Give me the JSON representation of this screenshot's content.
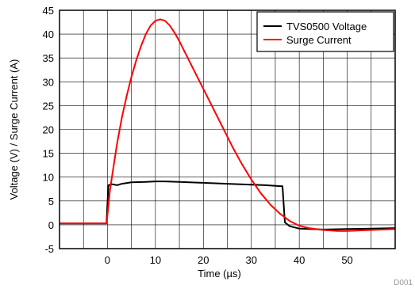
{
  "chart_data": {
    "type": "line",
    "title": "",
    "xlabel": "Time (µs)",
    "ylabel": "Voltage (V) / Surge Current (A)",
    "xlim": [
      -10,
      60
    ],
    "ylim": [
      -5,
      45
    ],
    "x_ticks": [
      0,
      10,
      20,
      30,
      40,
      50
    ],
    "y_ticks": [
      -5,
      0,
      5,
      10,
      15,
      20,
      25,
      30,
      35,
      40,
      45
    ],
    "grid": true,
    "legend_position": "top-right",
    "figure_id": "D001",
    "series": [
      {
        "name": "TVS0500 Voltage",
        "color": "#000000",
        "points": [
          [
            -10,
            0.3
          ],
          [
            -5,
            0.3
          ],
          [
            -0.2,
            0.3
          ],
          [
            0.2,
            8.3
          ],
          [
            1,
            8.5
          ],
          [
            2,
            8.3
          ],
          [
            3,
            8.6
          ],
          [
            5,
            8.9
          ],
          [
            8,
            9.0
          ],
          [
            10,
            9.1
          ],
          [
            12,
            9.1
          ],
          [
            15,
            9.0
          ],
          [
            20,
            8.8
          ],
          [
            25,
            8.6
          ],
          [
            30,
            8.4
          ],
          [
            33,
            8.3
          ],
          [
            36,
            8.1
          ],
          [
            36.5,
            8.1
          ],
          [
            37,
            0.5
          ],
          [
            38,
            -0.3
          ],
          [
            40,
            -0.8
          ],
          [
            45,
            -1.0
          ],
          [
            50,
            -0.9
          ],
          [
            55,
            -0.8
          ],
          [
            60,
            -0.7
          ]
        ]
      },
      {
        "name": "Surge Current",
        "color": "#ff0000",
        "points": [
          [
            -10,
            0.3
          ],
          [
            -5,
            0.3
          ],
          [
            -0.2,
            0.3
          ],
          [
            0,
            2.0
          ],
          [
            0.5,
            7.0
          ],
          [
            1,
            10.5
          ],
          [
            2,
            17.0
          ],
          [
            3,
            22.5
          ],
          [
            4,
            27.0
          ],
          [
            5,
            31.0
          ],
          [
            6,
            34.5
          ],
          [
            7,
            37.5
          ],
          [
            8,
            40.0
          ],
          [
            9,
            41.8
          ],
          [
            10,
            42.8
          ],
          [
            11,
            43.1
          ],
          [
            12,
            42.8
          ],
          [
            13,
            41.8
          ],
          [
            14,
            40.3
          ],
          [
            15,
            38.5
          ],
          [
            16,
            36.5
          ],
          [
            18,
            32.5
          ],
          [
            20,
            28.5
          ],
          [
            22,
            24.5
          ],
          [
            24,
            20.5
          ],
          [
            26,
            16.5
          ],
          [
            28,
            12.8
          ],
          [
            30,
            9.5
          ],
          [
            32,
            6.6
          ],
          [
            34,
            4.2
          ],
          [
            36,
            2.3
          ],
          [
            38,
            0.8
          ],
          [
            40,
            -0.2
          ],
          [
            42,
            -0.7
          ],
          [
            45,
            -1.1
          ],
          [
            48,
            -1.3
          ],
          [
            50,
            -1.3
          ],
          [
            55,
            -1.1
          ],
          [
            60,
            -0.9
          ]
        ]
      }
    ]
  }
}
